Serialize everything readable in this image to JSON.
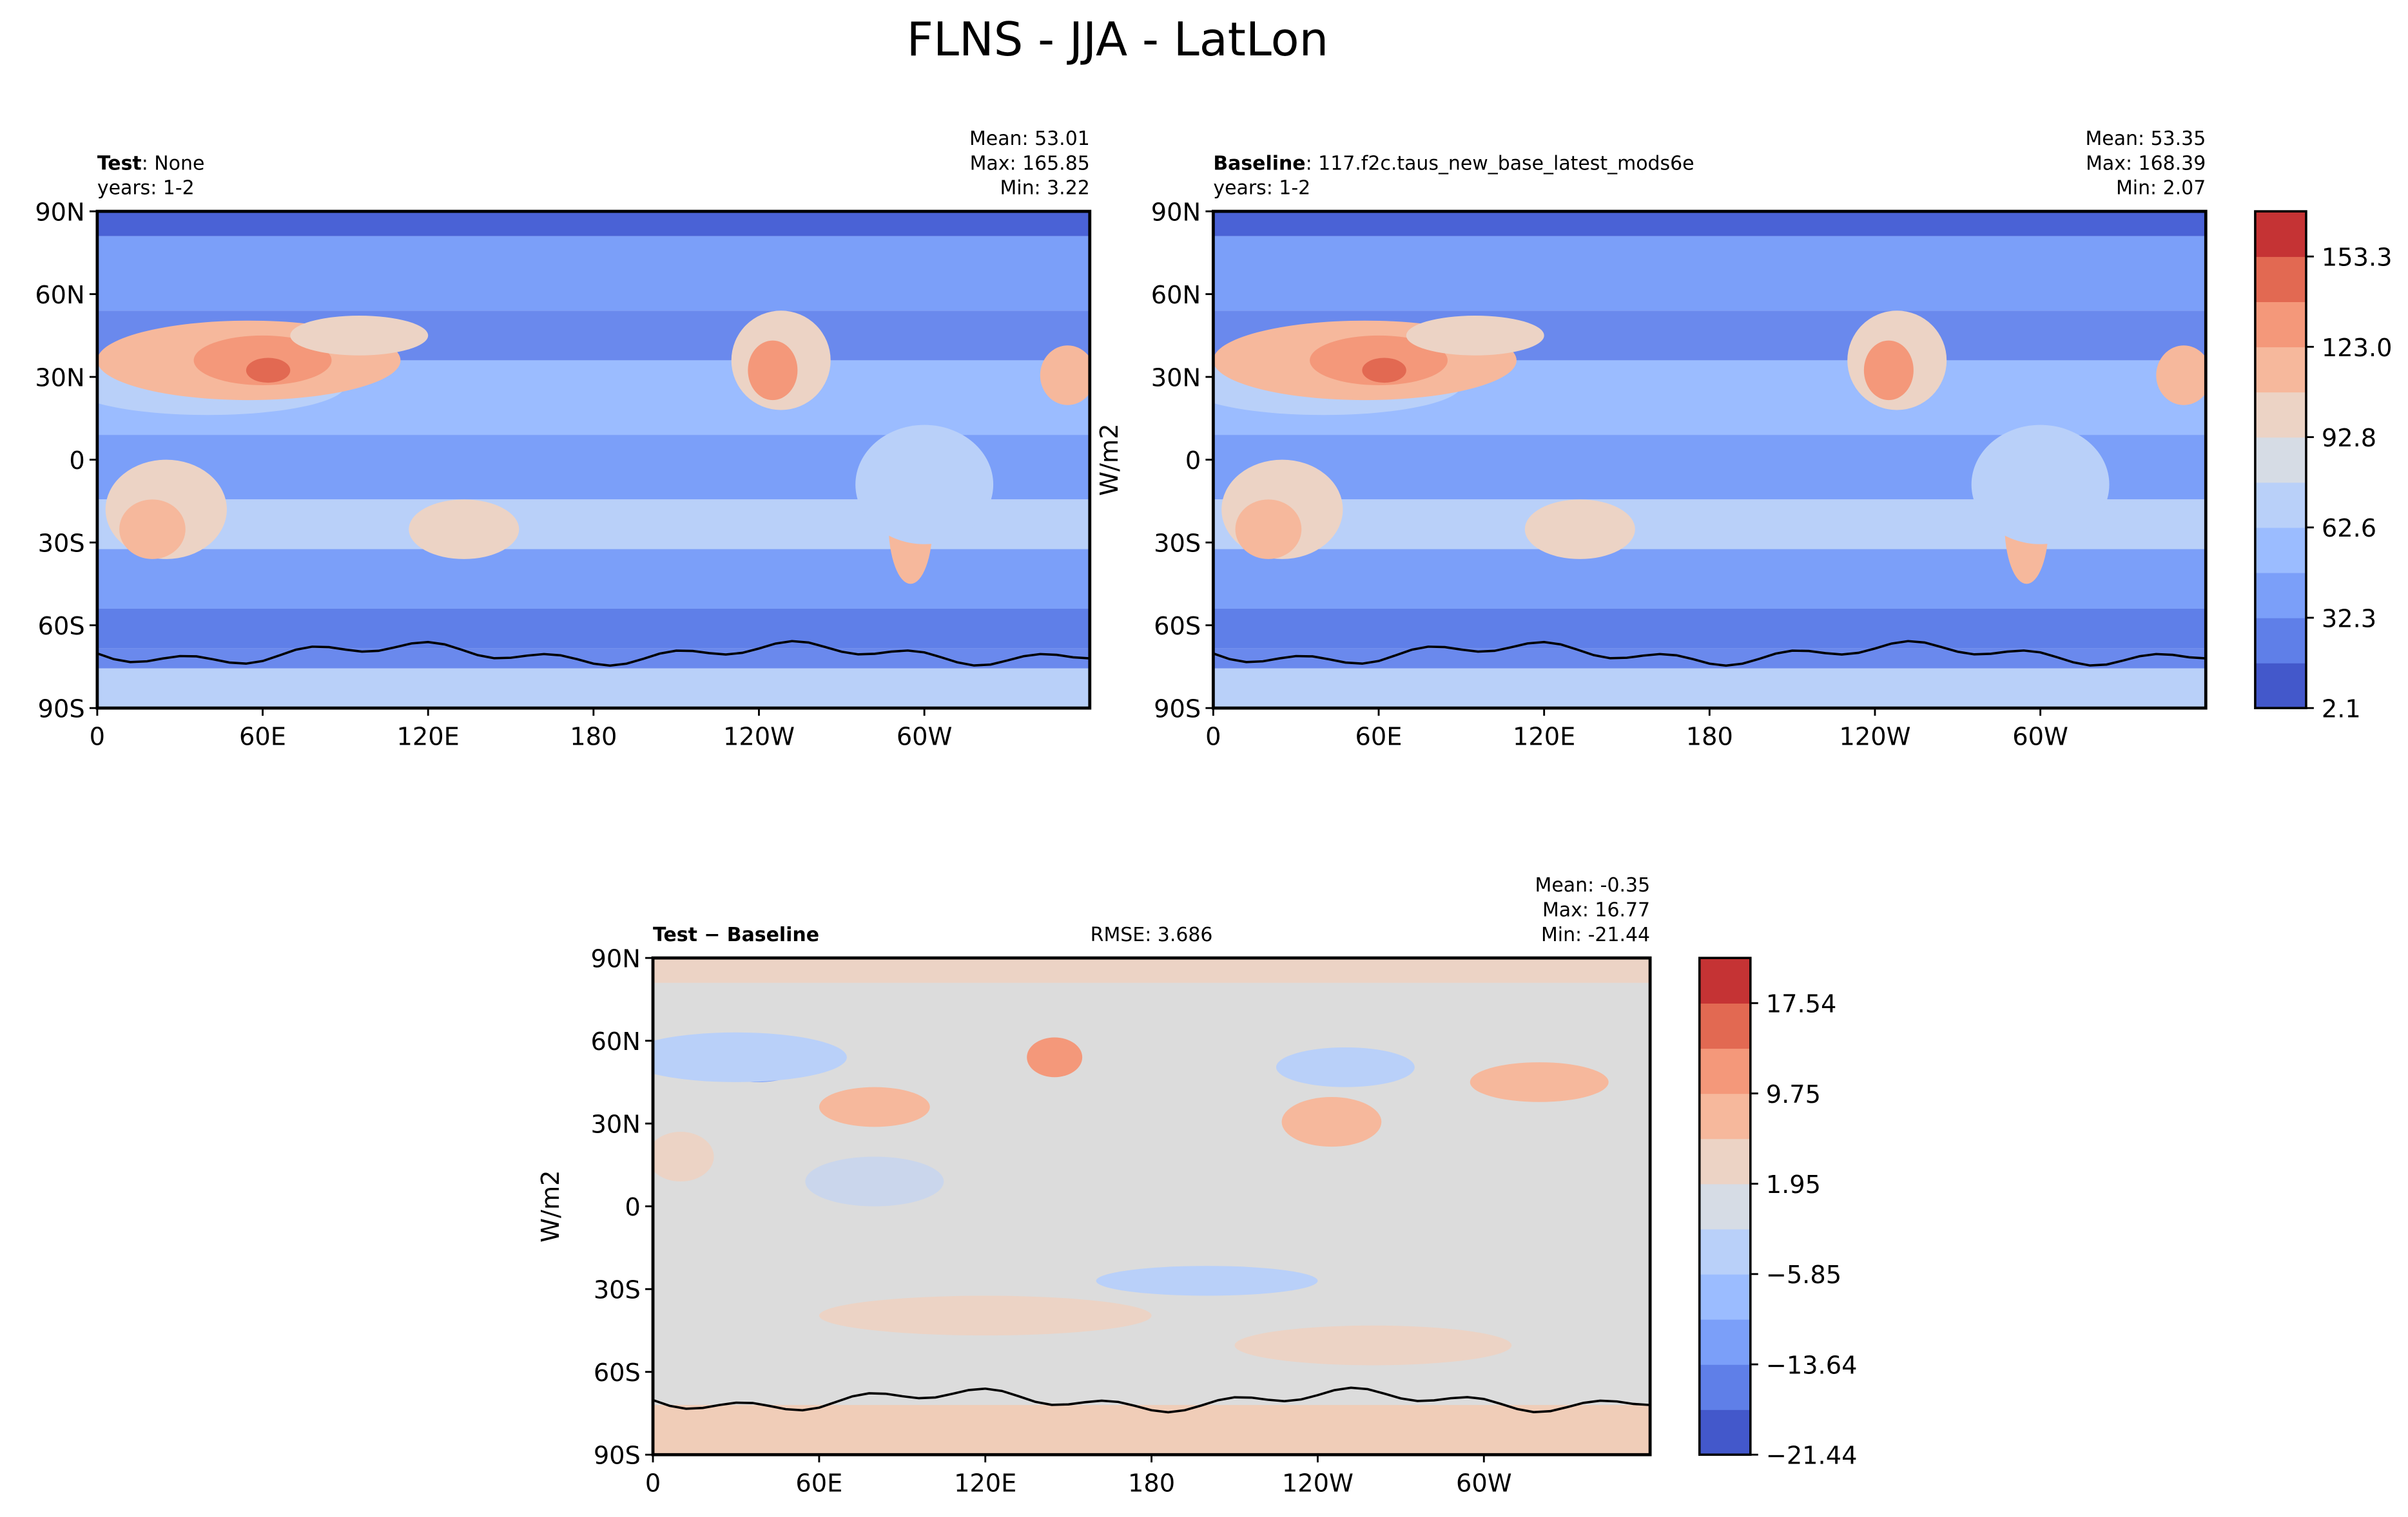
{
  "title": "FLNS - JJA - LatLon",
  "panels": [
    {
      "label": "Test",
      "name": ": None",
      "years": "years: 1-2",
      "stats": [
        "Mean: 53.01",
        "Max: 165.85",
        "Min:  3.22"
      ]
    },
    {
      "label": "Baseline",
      "name": ": 117.f2c.taus_new_base_latest_mods6e",
      "years": "years: 1-2",
      "stats": [
        "Mean: 53.35",
        "Max: 168.39",
        "Min:  2.07"
      ]
    },
    {
      "label": "Test − Baseline",
      "rmse": "RMSE: 3.686",
      "stats": [
        "Mean: -0.35",
        "Max: 16.77",
        "Min: -21.44"
      ]
    }
  ],
  "lat_ticks": [
    "90N",
    "60N",
    "30N",
    "0",
    "30S",
    "60S",
    "90S"
  ],
  "lon_ticks": [
    "0",
    "60E",
    "120E",
    "180",
    "120W",
    "60W"
  ],
  "units": "W/m2",
  "colorbars": [
    {
      "ticks": [
        "153.3",
        "123.0",
        "92.8",
        "62.6",
        "32.3",
        "2.1"
      ]
    },
    {
      "ticks": [
        "17.54",
        "9.75",
        "1.95",
        "−5.85",
        "−13.64",
        "−21.44"
      ]
    }
  ]
}
